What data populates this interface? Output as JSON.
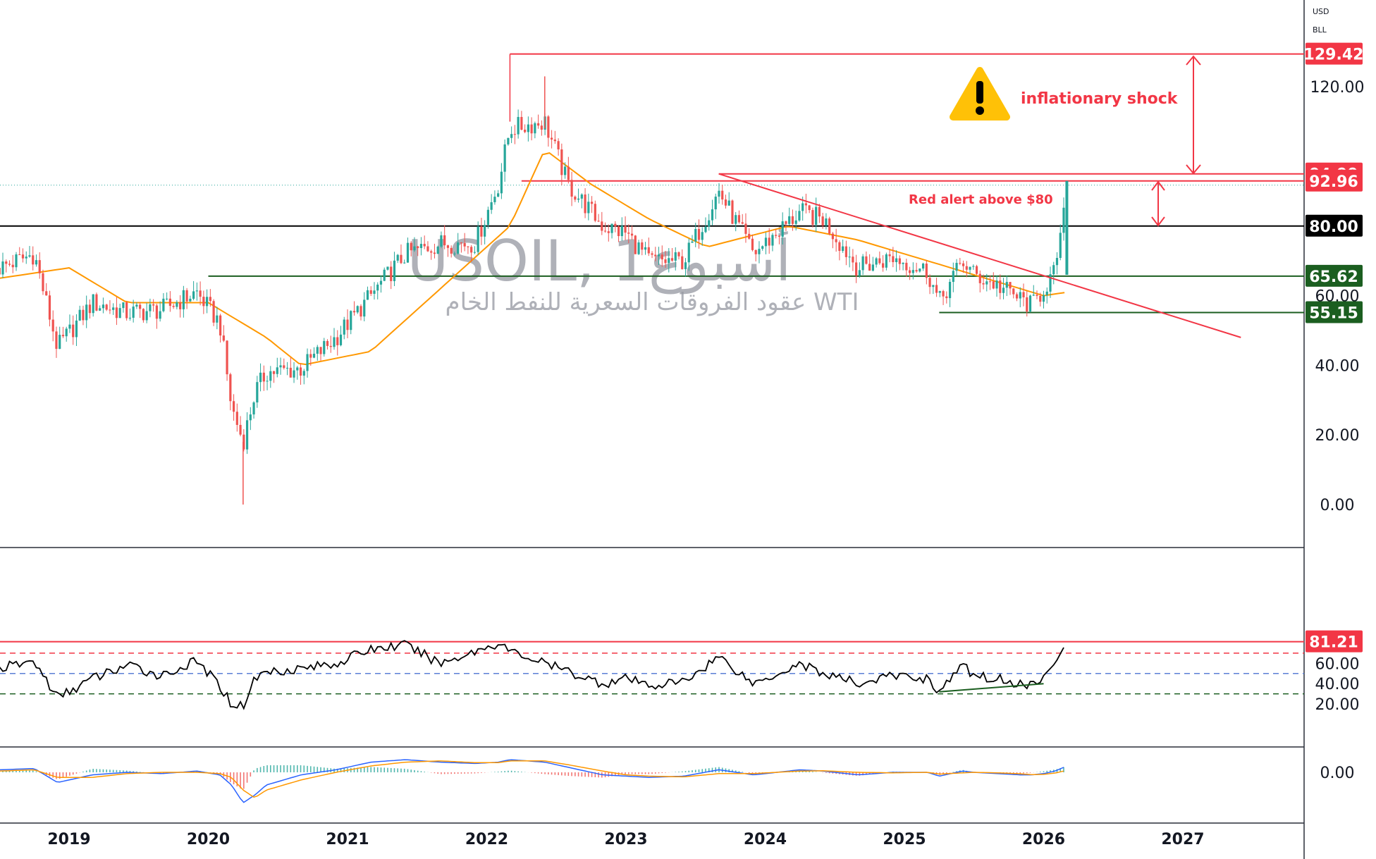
{
  "header": {
    "currency": "USD",
    "unit": "BLL"
  },
  "watermark": {
    "title": "USOIL, 1أسبوع",
    "subtitle": "عقود الفروقات السعرية للنفط الخام WTI"
  },
  "annotations": {
    "shock_text": "inflationary shock",
    "alert_text": "Red alert above $80",
    "warning_icon": "warning-icon"
  },
  "colors": {
    "red": "#f23645",
    "green": "#1b5e20",
    "black": "#000000",
    "orange": "#ff9800",
    "teal": "#26a69a",
    "candle_red": "#ef5350",
    "macd_blue": "#2962ff"
  },
  "chart_data": [
    {
      "type": "candlestick",
      "name": "price",
      "x_axis": {
        "type": "date",
        "tick_labels": [
          "2019",
          "2020",
          "2021",
          "2022",
          "2023",
          "2024",
          "2025",
          "2026",
          "2027"
        ],
        "range": [
          "2018-07",
          "2027-07"
        ]
      },
      "y_axis": {
        "tick_labels": [
          "120.00",
          "80.00",
          "60.00",
          "40.00",
          "20.00",
          "0.00"
        ],
        "range": [
          -5,
          130
        ]
      },
      "price_tags": [
        {
          "value": "129.42",
          "color": "red"
        },
        {
          "value": "94.99",
          "color": "red"
        },
        {
          "value": "92.96",
          "color": "red"
        },
        {
          "value": "80.00",
          "color": "black"
        },
        {
          "value": "65.62",
          "color": "green"
        },
        {
          "value": "55.15",
          "color": "green"
        }
      ],
      "close_series": {
        "x": [
          "2018-07",
          "2018-10",
          "2018-12",
          "2019-03",
          "2019-06",
          "2019-09",
          "2019-12",
          "2020-02",
          "2020-03",
          "2020-04",
          "2020-05",
          "2020-06",
          "2020-09",
          "2020-12",
          "2021-03",
          "2021-06",
          "2021-09",
          "2021-12",
          "2022-02",
          "2022-03",
          "2022-06",
          "2022-08",
          "2022-11",
          "2023-01",
          "2023-03",
          "2023-06",
          "2023-09",
          "2023-12",
          "2024-04",
          "2024-06",
          "2024-09",
          "2024-12",
          "2025-03",
          "2025-04",
          "2025-06",
          "2025-07",
          "2025-09",
          "2025-11",
          "2025-12",
          "2026-01",
          "2026-02",
          "2026-03"
        ],
        "values": [
          68,
          72,
          45,
          58,
          55,
          56,
          61,
          52,
          28,
          18,
          32,
          38,
          39,
          48,
          60,
          72,
          75,
          75,
          92,
          108,
          110,
          92,
          80,
          78,
          70,
          70,
          90,
          72,
          84,
          82,
          68,
          71,
          67,
          58,
          70,
          66,
          63,
          59,
          57,
          62,
          67,
          92
        ]
      },
      "extremes": {
        "high_2022": 123,
        "low_2020": 0
      },
      "moving_average": {
        "x": [
          "2018-07",
          "2019-01",
          "2019-06",
          "2020-01",
          "2020-06",
          "2020-09",
          "2021-03",
          "2021-09",
          "2022-03",
          "2022-06",
          "2022-10",
          "2023-03",
          "2023-08",
          "2024-03",
          "2024-09",
          "2025-03",
          "2025-09",
          "2026-01",
          "2026-03"
        ],
        "values": [
          65,
          68,
          58,
          58,
          48,
          40,
          44,
          62,
          80,
          102,
          92,
          82,
          74,
          80,
          76,
          70,
          64,
          60,
          61
        ]
      },
      "levels": [
        {
          "value": 129.42,
          "from": "2022-03",
          "color": "red"
        },
        {
          "value": 94.99,
          "from": "2023-09",
          "color": "red"
        },
        {
          "value": 92.96,
          "from": "2022-04",
          "color": "red"
        },
        {
          "value": 80.0,
          "from": "2018-07",
          "color": "black"
        },
        {
          "value": 65.62,
          "from": "2020-01",
          "color": "green"
        },
        {
          "value": 55.15,
          "from": "2025-04",
          "color": "green"
        }
      ],
      "trendline": {
        "x": [
          "2023-09",
          "2027-06"
        ],
        "values": [
          95,
          48
        ]
      }
    },
    {
      "type": "line",
      "name": "rsi",
      "y_axis": {
        "tick_labels": [
          "81.21",
          "60.00",
          "40.00",
          "20.00"
        ],
        "range": [
          10,
          90
        ]
      },
      "levels": [
        70,
        50,
        30
      ],
      "top_line": 81.21,
      "x": [
        "2018-07",
        "2018-10",
        "2018-12",
        "2019-03",
        "2019-06",
        "2019-09",
        "2019-12",
        "2020-02",
        "2020-03",
        "2020-04",
        "2020-05",
        "2020-06",
        "2020-09",
        "2020-12",
        "2021-03",
        "2021-06",
        "2021-09",
        "2021-12",
        "2022-02",
        "2022-03",
        "2022-06",
        "2022-08",
        "2022-11",
        "2023-01",
        "2023-03",
        "2023-06",
        "2023-09",
        "2023-12",
        "2024-04",
        "2024-06",
        "2024-09",
        "2024-12",
        "2025-03",
        "2025-04",
        "2025-06",
        "2025-07",
        "2025-09",
        "2025-11",
        "2025-12",
        "2026-01",
        "2026-02",
        "2026-03"
      ],
      "values": [
        55,
        62,
        26,
        45,
        58,
        48,
        62,
        38,
        20,
        18,
        45,
        52,
        55,
        60,
        74,
        78,
        60,
        72,
        80,
        72,
        60,
        52,
        40,
        45,
        38,
        42,
        67,
        40,
        60,
        50,
        40,
        48,
        45,
        32,
        58,
        48,
        45,
        40,
        38,
        48,
        60,
        81.21
      ],
      "divergence_line": {
        "x": [
          "2025-04",
          "2026-01"
        ],
        "values": [
          32,
          40
        ]
      }
    },
    {
      "type": "histogram",
      "name": "macd",
      "y_axis": {
        "tick_labels": [
          "0.00"
        ],
        "range": [
          -14,
          10
        ]
      },
      "x": [
        "2018-07",
        "2018-10",
        "2018-12",
        "2019-03",
        "2019-06",
        "2019-09",
        "2019-12",
        "2020-02",
        "2020-03",
        "2020-04",
        "2020-05",
        "2020-06",
        "2020-09",
        "2020-12",
        "2021-03",
        "2021-06",
        "2021-09",
        "2021-12",
        "2022-02",
        "2022-03",
        "2022-06",
        "2022-08",
        "2022-11",
        "2023-01",
        "2023-03",
        "2023-06",
        "2023-09",
        "2023-12",
        "2024-04",
        "2024-06",
        "2024-09",
        "2024-12",
        "2025-03",
        "2025-04",
        "2025-06",
        "2025-07",
        "2025-09",
        "2025-11",
        "2025-12",
        "2026-01",
        "2026-02",
        "2026-03"
      ],
      "macd": [
        1,
        1.5,
        -4,
        -1,
        0,
        -0.5,
        0.5,
        -1,
        -5,
        -12,
        -9,
        -5,
        -1,
        1,
        4,
        5,
        4,
        3.5,
        4,
        5,
        4,
        2,
        -1,
        -1.5,
        -2,
        -1.5,
        1,
        -1,
        1,
        0.5,
        -1,
        0,
        0,
        -1.5,
        0.5,
        0,
        -0.5,
        -1,
        -1,
        -0.5,
        0.5,
        2.5
      ],
      "signal": [
        0.5,
        1,
        -2,
        -2,
        -0.5,
        0,
        0,
        -0.5,
        -2,
        -7,
        -10,
        -7,
        -3,
        0,
        2.5,
        4,
        4.5,
        3.8,
        3.8,
        4.5,
        4.5,
        3,
        0.5,
        -1,
        -1.5,
        -1.8,
        -0.5,
        -0.5,
        0.5,
        0.6,
        0,
        -0.2,
        0,
        -0.7,
        -0.2,
        0,
        -0.2,
        -0.6,
        -0.9,
        -0.8,
        -0.3,
        0.8
      ]
    }
  ]
}
